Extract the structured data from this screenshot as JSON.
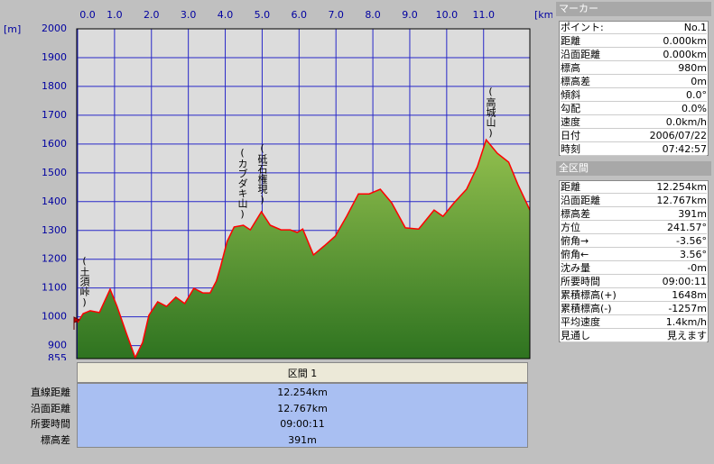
{
  "chart_data": {
    "type": "area",
    "xlabel": "[km]",
    "ylabel": "[m]",
    "x": [
      0,
      0.15,
      0.34,
      0.59,
      0.88,
      1.07,
      1.32,
      1.56,
      1.76,
      1.93,
      2.17,
      2.41,
      2.66,
      2.9,
      3.15,
      3.39,
      3.59,
      3.76,
      3.88,
      4.05,
      4.24,
      4.49,
      4.68,
      4.98,
      5.22,
      5.51,
      5.76,
      5.95,
      6.1,
      6.39,
      6.68,
      6.98,
      7.29,
      7.61,
      7.9,
      8.2,
      8.51,
      8.88,
      9.24,
      9.66,
      9.9,
      10.2,
      10.54,
      10.83,
      11.07,
      11.37,
      11.68,
      11.93,
      12.254
    ],
    "values": [
      980,
      1011,
      1021,
      1015,
      1096,
      1036,
      943,
      858,
      911,
      1005,
      1052,
      1036,
      1068,
      1046,
      1099,
      1083,
      1083,
      1124,
      1177,
      1262,
      1312,
      1318,
      1302,
      1365,
      1318,
      1302,
      1302,
      1293,
      1305,
      1215,
      1246,
      1280,
      1349,
      1427,
      1427,
      1443,
      1396,
      1309,
      1305,
      1371,
      1349,
      1396,
      1443,
      1521,
      1615,
      1568,
      1537,
      1459,
      1371
    ],
    "color": "#ff0000",
    "fill_top": "#93c04e",
    "fill_bottom": "#2e7320",
    "grid": true,
    "grid_color": "#2828c8",
    "xlim": [
      0,
      12.254
    ],
    "xticks": [
      {
        "value": 0,
        "label": "0.0"
      },
      {
        "value": 1,
        "label": "1.0"
      },
      {
        "value": 2,
        "label": "2.0"
      },
      {
        "value": 3,
        "label": "3.0"
      },
      {
        "value": 4,
        "label": "4.0"
      },
      {
        "value": 5,
        "label": "5.0"
      },
      {
        "value": 6,
        "label": "6.0"
      },
      {
        "value": 7,
        "label": "7.0"
      },
      {
        "value": 8,
        "label": "8.0"
      },
      {
        "value": 9,
        "label": "9.0"
      },
      {
        "value": 10,
        "label": "10.0"
      },
      {
        "value": 11,
        "label": "11.0"
      }
    ],
    "ylim": [
      855,
      2000
    ],
    "yticks": [
      855,
      900,
      1000,
      1100,
      1200,
      1300,
      1400,
      1500,
      1600,
      1700,
      1800,
      1900,
      2000
    ],
    "annotations": [
      "(土須峠)",
      "(カブダキ山)",
      "(砥石権現)",
      "(高城山)"
    ]
  },
  "section_panel": {
    "title": "区間 1",
    "rows": [
      [
        "直線距離",
        "12.254km"
      ],
      [
        "沿面距離",
        "12.767km"
      ],
      [
        "所要時間",
        "09:00:11"
      ],
      [
        "標高差",
        "391m"
      ]
    ]
  },
  "marker_panel": {
    "title": "マーカー",
    "rows": [
      [
        "ポイント:",
        "No.1"
      ],
      [
        "距離",
        "0.000km"
      ],
      [
        "沿面距離",
        "0.000km"
      ],
      [
        "標高",
        "980m"
      ],
      [
        "標高差",
        "0m"
      ],
      [
        "傾斜",
        "0.0°"
      ],
      [
        "勾配",
        "0.0%"
      ],
      [
        "速度",
        "0.0km/h"
      ],
      [
        "日付",
        "2006/07/22"
      ],
      [
        "時刻",
        "07:42:57"
      ]
    ]
  },
  "total_panel": {
    "title": "全区間",
    "rows": [
      [
        "距離",
        "12.254km"
      ],
      [
        "沿面距離",
        "12.767km"
      ],
      [
        "標高差",
        "391m"
      ],
      [
        "方位",
        "241.57°"
      ],
      [
        "俯角→",
        "-3.56°"
      ],
      [
        "俯角←",
        "3.56°"
      ],
      [
        "沈み量",
        "-0m"
      ],
      [
        "所要時間",
        "09:00:11"
      ],
      [
        "累積標高(+)",
        "1648m"
      ],
      [
        "累積標高(-)",
        "-1257m"
      ],
      [
        "平均速度",
        "1.4km/h"
      ],
      [
        "見通し",
        "見えます"
      ]
    ]
  }
}
